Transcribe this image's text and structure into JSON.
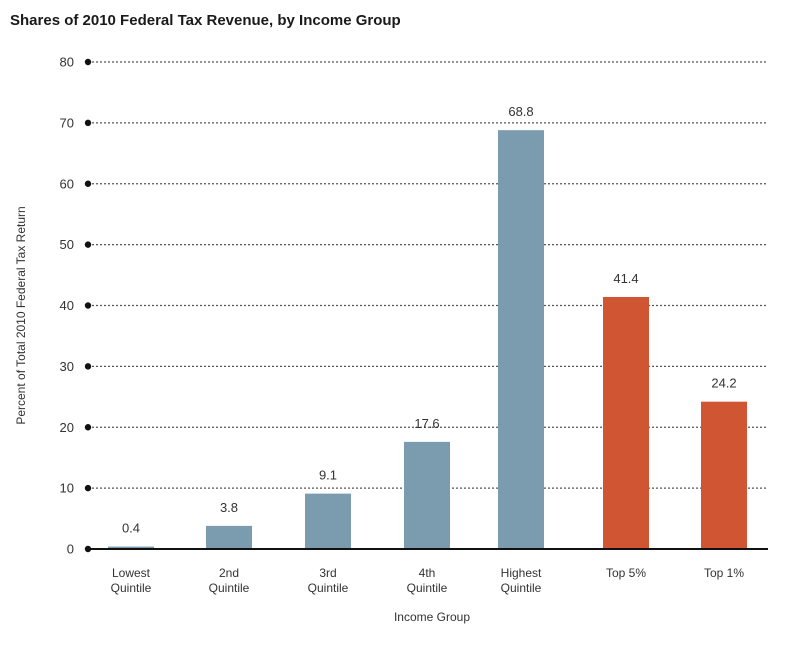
{
  "chart_data": {
    "type": "bar",
    "title": "Shares of 2010 Federal Tax Revenue, by Income Group",
    "xlabel": "Income Group",
    "ylabel": "Percent of Total 2010 Federal Tax Return",
    "ylim": [
      0,
      80
    ],
    "yticks": [
      "0",
      "10",
      "20",
      "30",
      "40",
      "50",
      "60",
      "70",
      "80"
    ],
    "grid": true,
    "categories": [
      [
        "Lowest",
        "Quintile"
      ],
      [
        "2nd",
        "Quintile"
      ],
      [
        "3rd",
        "Quintile"
      ],
      [
        "4th",
        "Quintile"
      ],
      [
        "Highest",
        "Quintile"
      ],
      [
        "Top 5%"
      ],
      [
        "Top 1%"
      ]
    ],
    "values": [
      0.4,
      3.8,
      9.1,
      17.6,
      68.8,
      41.4,
      24.2
    ],
    "value_labels": [
      "0.4",
      "3.8",
      "9.1",
      "17.6",
      "68.8",
      "41.4",
      "24.2"
    ],
    "colors": [
      "#7b9caf",
      "#7b9caf",
      "#7b9caf",
      "#7b9caf",
      "#7b9caf",
      "#cf5533",
      "#cf5533"
    ]
  }
}
